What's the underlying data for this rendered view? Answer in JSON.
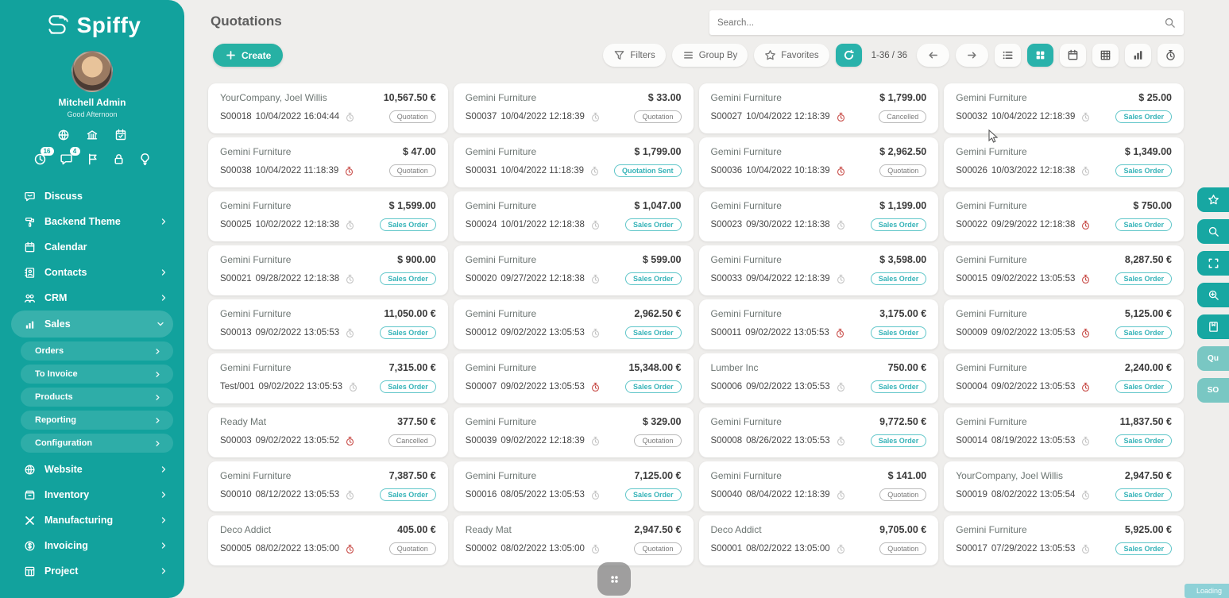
{
  "brand": {
    "name": "Spiffy"
  },
  "user": {
    "name": "Mitchell Admin",
    "greeting": "Good Afternoon"
  },
  "sidebar": {
    "utility_icons": [
      {
        "icon": "globe"
      },
      {
        "icon": "building"
      },
      {
        "icon": "calendar-page"
      }
    ],
    "notification_icons": [
      {
        "icon": "clock",
        "badge": "16"
      },
      {
        "icon": "chat",
        "badge": "4"
      },
      {
        "icon": "flag"
      },
      {
        "icon": "lock"
      },
      {
        "icon": "lightbulb"
      }
    ],
    "menu": [
      {
        "label": "Discuss",
        "icon": "discuss",
        "chevron": null
      },
      {
        "label": "Backend Theme",
        "icon": "theme",
        "chevron": "right"
      },
      {
        "label": "Calendar",
        "icon": "calendar",
        "chevron": null
      },
      {
        "label": "Contacts",
        "icon": "contacts",
        "chevron": "right"
      },
      {
        "label": "CRM",
        "icon": "crm",
        "chevron": "right"
      },
      {
        "label": "Sales",
        "icon": "sales",
        "chevron": "down",
        "active": true,
        "children": [
          "Orders",
          "To Invoice",
          "Products",
          "Reporting",
          "Configuration"
        ]
      },
      {
        "label": "Website",
        "icon": "website",
        "chevron": "right"
      },
      {
        "label": "Inventory",
        "icon": "inventory",
        "chevron": "right"
      },
      {
        "label": "Manufacturing",
        "icon": "manufacturing",
        "chevron": "right"
      },
      {
        "label": "Invoicing",
        "icon": "invoicing",
        "chevron": "right"
      },
      {
        "label": "Project",
        "icon": "project",
        "chevron": "right"
      }
    ]
  },
  "header": {
    "title": "Quotations",
    "create_label": "Create",
    "search_placeholder": "Search..."
  },
  "control_panel": {
    "filters_label": "Filters",
    "group_by_label": "Group By",
    "favorites_label": "Favorites",
    "pager": "1-36 / 36",
    "active_view": "kanban"
  },
  "right_rail": [
    {
      "icon": "star"
    },
    {
      "icon": "search"
    },
    {
      "icon": "expand"
    },
    {
      "icon": "zoom-in"
    },
    {
      "icon": "journal"
    },
    {
      "label": "Qu"
    },
    {
      "label": "SO"
    }
  ],
  "footer": {
    "loading_label": "Loading"
  },
  "colors": {
    "accent": "#12a29d",
    "badge_teal": "#35b3b8",
    "badge_gray": "#7a7a7a",
    "alert_red": "#c9504c"
  },
  "cards": [
    {
      "customer": "YourCompany, Joel Willis",
      "amount": "10,567.50 €",
      "reference": "S00018",
      "datetime": "10/04/2022 16:04:44",
      "clock": "gray",
      "status": "Quotation",
      "status_style": "gray"
    },
    {
      "customer": "Gemini Furniture",
      "amount": "$ 33.00",
      "reference": "S00037",
      "datetime": "10/04/2022 12:18:39",
      "clock": "gray",
      "status": "Quotation",
      "status_style": "gray"
    },
    {
      "customer": "Gemini Furniture",
      "amount": "$ 1,799.00",
      "reference": "S00027",
      "datetime": "10/04/2022 12:18:39",
      "clock": "red",
      "status": "Cancelled",
      "status_style": "gray"
    },
    {
      "customer": "Gemini Furniture",
      "amount": "$ 25.00",
      "reference": "S00032",
      "datetime": "10/04/2022 12:18:39",
      "clock": "gray",
      "status": "Sales Order",
      "status_style": "teal"
    },
    {
      "customer": "Gemini Furniture",
      "amount": "$ 47.00",
      "reference": "S00038",
      "datetime": "10/04/2022 11:18:39",
      "clock": "red",
      "status": "Quotation",
      "status_style": "gray"
    },
    {
      "customer": "Gemini Furniture",
      "amount": "$ 1,799.00",
      "reference": "S00031",
      "datetime": "10/04/2022 11:18:39",
      "clock": "gray",
      "status": "Quotation Sent",
      "status_style": "teal"
    },
    {
      "customer": "Gemini Furniture",
      "amount": "$ 2,962.50",
      "reference": "S00036",
      "datetime": "10/04/2022 10:18:39",
      "clock": "red",
      "status": "Quotation",
      "status_style": "gray"
    },
    {
      "customer": "Gemini Furniture",
      "amount": "$ 1,349.00",
      "reference": "S00026",
      "datetime": "10/03/2022 12:18:38",
      "clock": "gray",
      "status": "Sales Order",
      "status_style": "teal"
    },
    {
      "customer": "Gemini Furniture",
      "amount": "$ 1,599.00",
      "reference": "S00025",
      "datetime": "10/02/2022 12:18:38",
      "clock": "gray",
      "status": "Sales Order",
      "status_style": "teal"
    },
    {
      "customer": "Gemini Furniture",
      "amount": "$ 1,047.00",
      "reference": "S00024",
      "datetime": "10/01/2022 12:18:38",
      "clock": "gray",
      "status": "Sales Order",
      "status_style": "teal"
    },
    {
      "customer": "Gemini Furniture",
      "amount": "$ 1,199.00",
      "reference": "S00023",
      "datetime": "09/30/2022 12:18:38",
      "clock": "gray",
      "status": "Sales Order",
      "status_style": "teal"
    },
    {
      "customer": "Gemini Furniture",
      "amount": "$ 750.00",
      "reference": "S00022",
      "datetime": "09/29/2022 12:18:38",
      "clock": "red",
      "status": "Sales Order",
      "status_style": "teal"
    },
    {
      "customer": "Gemini Furniture",
      "amount": "$ 900.00",
      "reference": "S00021",
      "datetime": "09/28/2022 12:18:38",
      "clock": "gray",
      "status": "Sales Order",
      "status_style": "teal"
    },
    {
      "customer": "Gemini Furniture",
      "amount": "$ 599.00",
      "reference": "S00020",
      "datetime": "09/27/2022 12:18:38",
      "clock": "gray",
      "status": "Sales Order",
      "status_style": "teal"
    },
    {
      "customer": "Gemini Furniture",
      "amount": "$ 3,598.00",
      "reference": "S00033",
      "datetime": "09/04/2022 12:18:39",
      "clock": "gray",
      "status": "Sales Order",
      "status_style": "teal"
    },
    {
      "customer": "Gemini Furniture",
      "amount": "8,287.50 €",
      "reference": "S00015",
      "datetime": "09/02/2022 13:05:53",
      "clock": "red",
      "status": "Sales Order",
      "status_style": "teal"
    },
    {
      "customer": "Gemini Furniture",
      "amount": "11,050.00 €",
      "reference": "S00013",
      "datetime": "09/02/2022 13:05:53",
      "clock": "gray",
      "status": "Sales Order",
      "status_style": "teal"
    },
    {
      "customer": "Gemini Furniture",
      "amount": "2,962.50 €",
      "reference": "S00012",
      "datetime": "09/02/2022 13:05:53",
      "clock": "gray",
      "status": "Sales Order",
      "status_style": "teal"
    },
    {
      "customer": "Gemini Furniture",
      "amount": "3,175.00 €",
      "reference": "S00011",
      "datetime": "09/02/2022 13:05:53",
      "clock": "red",
      "status": "Sales Order",
      "status_style": "teal"
    },
    {
      "customer": "Gemini Furniture",
      "amount": "5,125.00 €",
      "reference": "S00009",
      "datetime": "09/02/2022 13:05:53",
      "clock": "red",
      "status": "Sales Order",
      "status_style": "teal"
    },
    {
      "customer": "Gemini Furniture",
      "amount": "7,315.00 €",
      "reference": "Test/001",
      "datetime": "09/02/2022 13:05:53",
      "clock": "gray",
      "status": "Sales Order",
      "status_style": "teal"
    },
    {
      "customer": "Gemini Furniture",
      "amount": "15,348.00 €",
      "reference": "S00007",
      "datetime": "09/02/2022 13:05:53",
      "clock": "red",
      "status": "Sales Order",
      "status_style": "teal"
    },
    {
      "customer": "Lumber Inc",
      "amount": "750.00 €",
      "reference": "S00006",
      "datetime": "09/02/2022 13:05:53",
      "clock": "gray",
      "status": "Sales Order",
      "status_style": "teal"
    },
    {
      "customer": "Gemini Furniture",
      "amount": "2,240.00 €",
      "reference": "S00004",
      "datetime": "09/02/2022 13:05:53",
      "clock": "red",
      "status": "Sales Order",
      "status_style": "teal"
    },
    {
      "customer": "Ready Mat",
      "amount": "377.50 €",
      "reference": "S00003",
      "datetime": "09/02/2022 13:05:52",
      "clock": "red",
      "status": "Cancelled",
      "status_style": "gray"
    },
    {
      "customer": "Gemini Furniture",
      "amount": "$ 329.00",
      "reference": "S00039",
      "datetime": "09/02/2022 12:18:39",
      "clock": "gray",
      "status": "Quotation",
      "status_style": "gray"
    },
    {
      "customer": "Gemini Furniture",
      "amount": "9,772.50 €",
      "reference": "S00008",
      "datetime": "08/26/2022 13:05:53",
      "clock": "gray",
      "status": "Sales Order",
      "status_style": "teal"
    },
    {
      "customer": "Gemini Furniture",
      "amount": "11,837.50 €",
      "reference": "S00014",
      "datetime": "08/19/2022 13:05:53",
      "clock": "gray",
      "status": "Sales Order",
      "status_style": "teal"
    },
    {
      "customer": "Gemini Furniture",
      "amount": "7,387.50 €",
      "reference": "S00010",
      "datetime": "08/12/2022 13:05:53",
      "clock": "gray",
      "status": "Sales Order",
      "status_style": "teal"
    },
    {
      "customer": "Gemini Furniture",
      "amount": "7,125.00 €",
      "reference": "S00016",
      "datetime": "08/05/2022 13:05:53",
      "clock": "gray",
      "status": "Sales Order",
      "status_style": "teal"
    },
    {
      "customer": "Gemini Furniture",
      "amount": "$ 141.00",
      "reference": "S00040",
      "datetime": "08/04/2022 12:18:39",
      "clock": "gray",
      "status": "Quotation",
      "status_style": "gray"
    },
    {
      "customer": "YourCompany, Joel Willis",
      "amount": "2,947.50 €",
      "reference": "S00019",
      "datetime": "08/02/2022 13:05:54",
      "clock": "gray",
      "status": "Sales Order",
      "status_style": "teal"
    },
    {
      "customer": "Deco Addict",
      "amount": "405.00 €",
      "reference": "S00005",
      "datetime": "08/02/2022 13:05:00",
      "clock": "red",
      "status": "Quotation",
      "status_style": "gray"
    },
    {
      "customer": "Ready Mat",
      "amount": "2,947.50 €",
      "reference": "S00002",
      "datetime": "08/02/2022 13:05:00",
      "clock": "gray",
      "status": "Quotation",
      "status_style": "gray"
    },
    {
      "customer": "Deco Addict",
      "amount": "9,705.00 €",
      "reference": "S00001",
      "datetime": "08/02/2022 13:05:00",
      "clock": "gray",
      "status": "Quotation",
      "status_style": "gray"
    },
    {
      "customer": "Gemini Furniture",
      "amount": "5,925.00 €",
      "reference": "S00017",
      "datetime": "07/29/2022 13:05:53",
      "clock": "gray",
      "status": "Sales Order",
      "status_style": "teal"
    }
  ]
}
